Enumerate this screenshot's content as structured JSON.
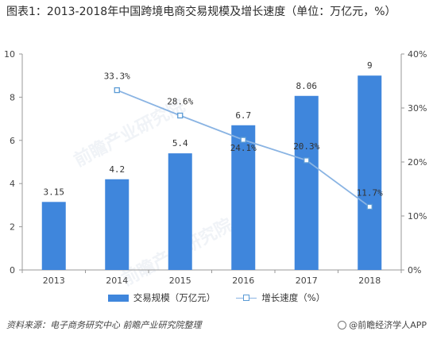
{
  "title": "图表1：2013-2018年中国跨境电商交易规模及增长速度（单位：万亿元，%）",
  "chart_data": {
    "type": "bar",
    "categories": [
      "2013",
      "2014",
      "2015",
      "2016",
      "2017",
      "2018"
    ],
    "series": [
      {
        "name": "交易规模（万亿元）",
        "type": "bar",
        "axis": "left",
        "values": [
          3.15,
          4.2,
          5.4,
          6.7,
          8.06,
          9
        ],
        "labels": [
          "3.15",
          "4.2",
          "5.4",
          "6.7",
          "8.06",
          "9"
        ],
        "color": "#3f86dc"
      },
      {
        "name": "增长速度（%）",
        "type": "line",
        "axis": "right",
        "values": [
          null,
          33.3,
          28.6,
          24.1,
          20.3,
          11.7
        ],
        "labels": [
          "",
          "33.3%",
          "28.6%",
          "24.1%",
          "20.3%",
          "11.7%"
        ],
        "color": "#8ab4e3"
      }
    ],
    "y_left": {
      "min": 0,
      "max": 10,
      "ticks": [
        "0",
        "2",
        "4",
        "6",
        "8",
        "10"
      ]
    },
    "y_right": {
      "min": 0,
      "max": 40,
      "ticks": [
        "0%",
        "10%",
        "20%",
        "30%",
        "40%"
      ]
    },
    "grid": false,
    "legend_position": "bottom"
  },
  "legend": {
    "bar_label": "交易规模（万亿元）",
    "line_label": "增长速度（%）"
  },
  "source": "资料来源：电子商务研究中心 前瞻产业研究院整理",
  "brand": "@前瞻经济学人APP",
  "watermark": "前瞻产业研究院"
}
